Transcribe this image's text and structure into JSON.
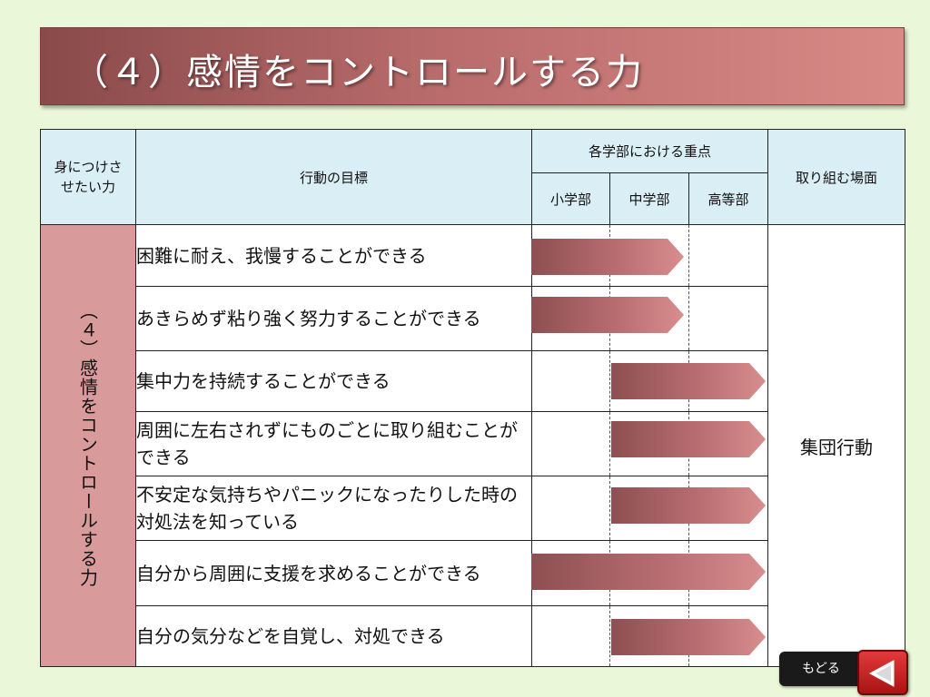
{
  "title": "（４）感情をコントロールする力",
  "table": {
    "headers": {
      "skill": "身につけさせたい力",
      "goal": "行動の目標",
      "focus_group": "各学部における重点",
      "elementary": "小学部",
      "junior_high": "中学部",
      "high": "高等部",
      "scene": "取り組む場面"
    },
    "category": "（４）感情をコントロールする力",
    "scene_value": "集団行動",
    "rows": [
      {
        "goal": "困難に耐え、我慢することができる",
        "levels": "小学部–中学部"
      },
      {
        "goal": "あきらめず粘り強く努力することができる",
        "levels": "小学部–中学部"
      },
      {
        "goal": "集中力を持続することができる",
        "levels": "中学部–高等部"
      },
      {
        "goal": "周囲に左右されずにものごとに取り組むことができる",
        "levels": "中学部–高等部"
      },
      {
        "goal": "不安定な気持ちやパニックになったりした時の対処法を知っている",
        "levels": "中学部–高等部"
      },
      {
        "goal": "自分から周囲に支援を求めることができる",
        "levels": "小学部–高等部"
      },
      {
        "goal": "自分の気分などを自覚し、対処できる",
        "levels": "中学部–高等部"
      }
    ]
  },
  "nav": {
    "back_label": "もどる",
    "back_icon": "triangle-left-icon"
  },
  "colors": {
    "background": "#eaf7d9",
    "title_bar": "#b86b6b",
    "header_bg": "#daeef5",
    "category_bg": "#d89a9a",
    "arrow": "#b76d70",
    "back_button": "#c21e1e"
  }
}
